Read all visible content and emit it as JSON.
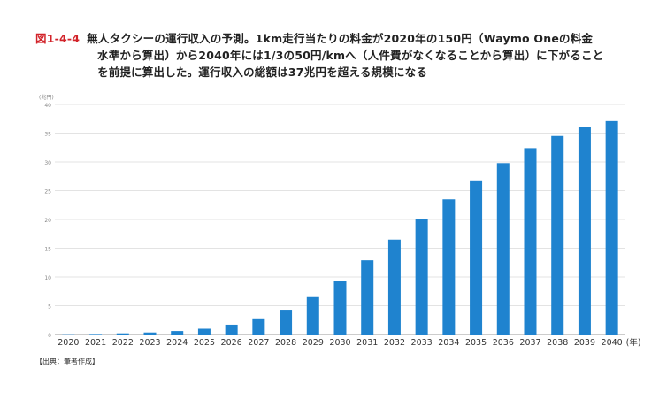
{
  "caption": {
    "figure_id": "図1-4-4",
    "lines": [
      "無人タクシーの運行収入の予測。1km走行当たりの料金が2020年の150円（Waymo Oneの料金",
      "水準から算出）から2040年には1/3の50円/kmへ（人件費がなくなることから算出）に下がること",
      "を前提に算出した。運行収入の総額は37兆円を超える規模になる"
    ]
  },
  "source": "【出典：筆者作成】",
  "chart_data": {
    "type": "bar",
    "title": "",
    "xlabel": "",
    "ylabel": "",
    "y_unit_label": "(兆円)",
    "x_unit_label": "(年)",
    "categories": [
      "2020",
      "2021",
      "2022",
      "2023",
      "2024",
      "2025",
      "2026",
      "2027",
      "2028",
      "2029",
      "2030",
      "2031",
      "2032",
      "2033",
      "2034",
      "2035",
      "2036",
      "2037",
      "2038",
      "2039",
      "2040"
    ],
    "values": [
      0.05,
      0.1,
      0.2,
      0.35,
      0.6,
      1.0,
      1.7,
      2.8,
      4.3,
      6.5,
      9.3,
      12.9,
      16.5,
      20.0,
      23.5,
      26.8,
      29.8,
      32.4,
      34.5,
      36.1,
      37.1
    ],
    "ylim": [
      0,
      40
    ],
    "yticks": [
      0,
      5,
      10,
      15,
      20,
      25,
      30,
      35,
      40
    ],
    "grid": true,
    "legend": "none",
    "bar_color": "#1f83cf",
    "grid_color": "#e3e3e3"
  }
}
